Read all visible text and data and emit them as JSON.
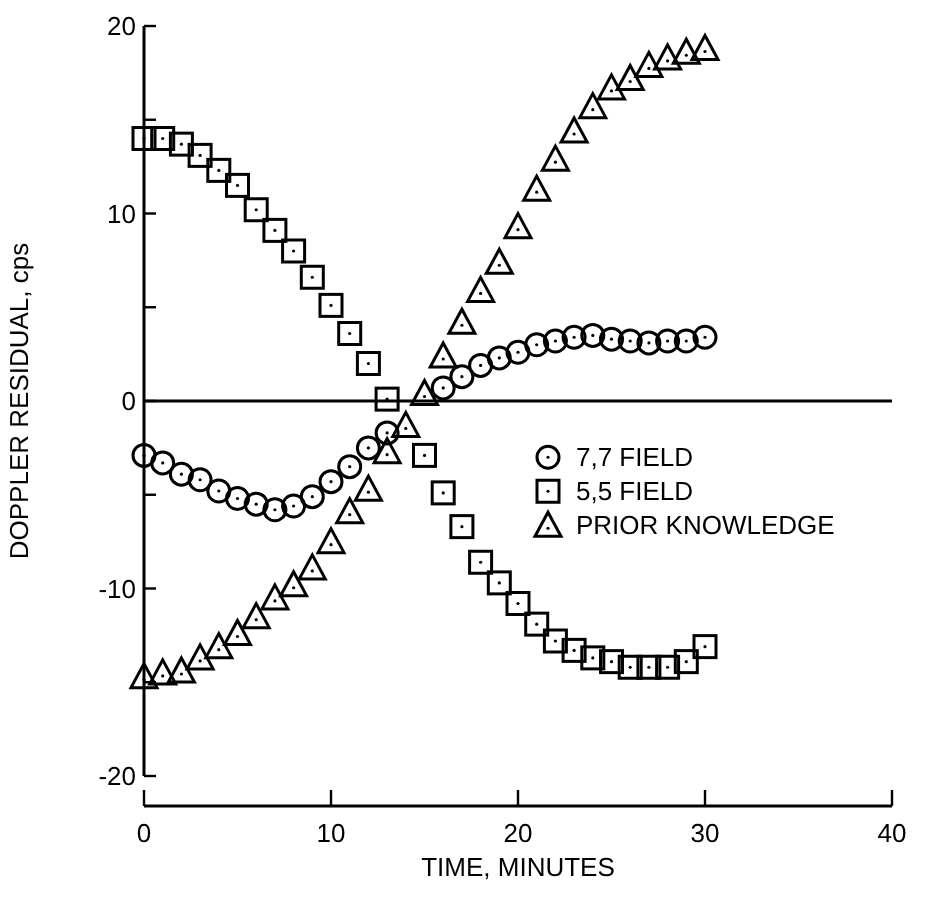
{
  "chart_data": {
    "type": "scatter",
    "xlabel": "TIME, MINUTES",
    "ylabel": "DOPPLER RESIDUAL, cps",
    "xlim": [
      0,
      40
    ],
    "xticks": [
      0,
      10,
      20,
      30,
      40
    ],
    "ylim": [
      -20,
      20
    ],
    "yticks": [
      -20,
      {
        "value": -15,
        "label": null
      },
      -10,
      {
        "value": -5,
        "label": null
      },
      0,
      {
        "value": 5,
        "label": null
      },
      10,
      {
        "value": 15,
        "label": null
      },
      20
    ],
    "grid": false,
    "legend": "right",
    "ref_lines": [
      {
        "axis": "y",
        "value": 0,
        "color": "#000000"
      }
    ],
    "series": [
      {
        "name": "7,7 FIELD",
        "color": "#000000",
        "marker": "circle",
        "x": [
          0,
          1,
          2,
          3,
          4,
          5,
          6,
          7,
          8,
          9,
          10,
          11,
          12,
          13,
          16,
          17,
          18,
          19,
          20,
          21,
          22,
          23,
          24,
          25,
          26,
          27,
          28,
          29,
          30
        ],
        "values": [
          -2.9,
          -3.3,
          -3.9,
          -4.2,
          -4.8,
          -5.2,
          -5.5,
          -5.8,
          -5.6,
          -5.1,
          -4.3,
          -3.5,
          -2.5,
          -1.7,
          0.7,
          1.3,
          1.9,
          2.3,
          2.6,
          3.0,
          3.2,
          3.4,
          3.5,
          3.3,
          3.2,
          3.1,
          3.2,
          3.2,
          3.4
        ]
      },
      {
        "name": "5,5 FIELD",
        "color": "#000000",
        "marker": "square",
        "x": [
          0,
          1,
          2,
          3,
          4,
          5,
          6,
          7,
          8,
          9,
          10,
          11,
          12,
          13,
          15,
          16,
          17,
          18,
          19,
          20,
          21,
          22,
          23,
          24,
          25,
          26,
          27,
          28,
          29,
          30
        ],
        "values": [
          14.0,
          14.0,
          13.7,
          13.1,
          12.3,
          11.5,
          10.2,
          9.1,
          8.0,
          6.6,
          5.1,
          3.6,
          2.0,
          0.1,
          -2.9,
          -4.9,
          -6.7,
          -8.6,
          -9.7,
          -10.8,
          -11.9,
          -12.8,
          -13.3,
          -13.7,
          -13.9,
          -14.2,
          -14.2,
          -14.2,
          -13.9,
          -13.1
        ]
      },
      {
        "name": "PRIOR KNOWLEDGE",
        "color": "#000000",
        "marker": "triangle",
        "x": [
          0,
          1,
          2,
          3,
          4,
          5,
          6,
          7,
          8,
          9,
          10,
          11,
          12,
          13,
          14,
          15,
          16,
          17,
          18,
          19,
          20,
          21,
          22,
          23,
          24,
          25,
          26,
          27,
          28,
          29,
          30
        ],
        "values": [
          -14.7,
          -14.5,
          -14.4,
          -13.7,
          -13.1,
          -12.4,
          -11.5,
          -10.5,
          -9.8,
          -8.9,
          -7.5,
          -5.9,
          -4.7,
          -2.7,
          -1.3,
          0.4,
          2.4,
          4.2,
          5.9,
          7.4,
          9.3,
          11.3,
          12.9,
          14.4,
          15.7,
          16.7,
          17.2,
          17.9,
          18.3,
          18.6,
          18.8
        ]
      }
    ]
  }
}
